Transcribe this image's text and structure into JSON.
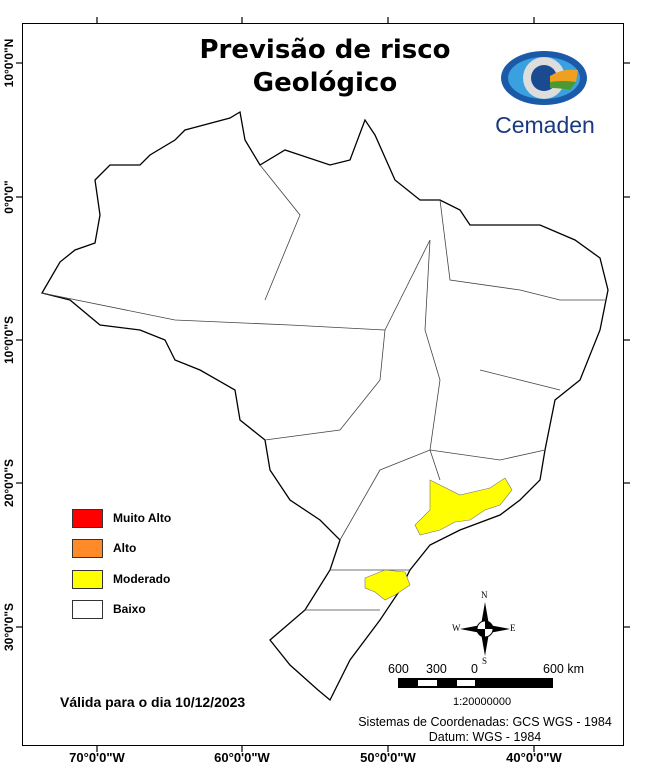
{
  "title": {
    "line1": "Previsão de risco",
    "line2": "Geológico"
  },
  "logo": {
    "text": "Cemaden"
  },
  "axes": {
    "longitude_labels": [
      "70°0'0\"W",
      "60°0'0\"W",
      "50°0'0\"W",
      "40°0'0\"W"
    ],
    "latitude_labels": [
      "10°0'0\"N",
      "0°0'0\"",
      "10°0'0\"S",
      "20°0'0\"S",
      "30°0'0\"S"
    ]
  },
  "legend": [
    {
      "label": "Muito Alto",
      "color": "#ff0000"
    },
    {
      "label": "Alto",
      "color": "#ff8a2a"
    },
    {
      "label": "Moderado",
      "color": "#ffff00"
    },
    {
      "label": "Baixo",
      "color": "#ffffff"
    }
  ],
  "validity": "Válida para o dia 10/12/2023",
  "compass": {
    "n": "N",
    "s": "S",
    "e": "E",
    "w": "W"
  },
  "scale_bar": {
    "labels": [
      "600",
      "300",
      "0",
      "600 km"
    ],
    "ratio": "1:20000000"
  },
  "coords": {
    "system": "Sistemas de Coordenadas: GCS WGS - 1984",
    "datum": "Datum: WGS - 1984"
  }
}
